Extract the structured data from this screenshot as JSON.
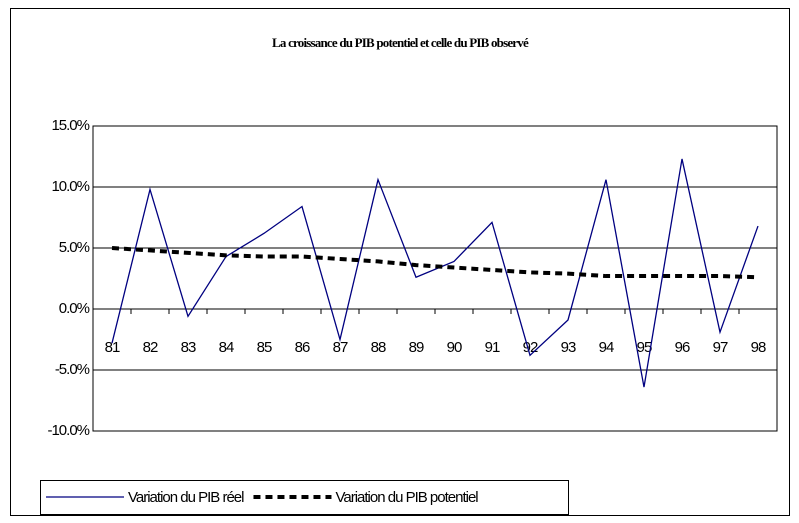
{
  "chart_data": {
    "type": "line",
    "title": "La croissance du PIB potentiel et celle du PIB observé",
    "categories": [
      "81",
      "82",
      "83",
      "84",
      "85",
      "86",
      "87",
      "88",
      "89",
      "90",
      "91",
      "92",
      "93",
      "94",
      "95",
      "96",
      "97",
      "98"
    ],
    "series": [
      {
        "name": "Variation du PIB réel",
        "color": "#000080",
        "dash": "solid",
        "values": [
          -2.8,
          9.8,
          -0.6,
          4.3,
          6.2,
          8.4,
          -2.5,
          10.6,
          2.6,
          3.9,
          7.1,
          -3.8,
          -0.9,
          10.6,
          -6.4,
          12.3,
          -1.9,
          6.8
        ]
      },
      {
        "name": "Variation du PIB potentiel",
        "color": "#000000",
        "dash": "dotted",
        "values": [
          5.0,
          4.8,
          4.6,
          4.4,
          4.3,
          4.3,
          4.1,
          3.9,
          3.6,
          3.4,
          3.2,
          3.0,
          2.9,
          2.7,
          2.7,
          2.7,
          2.7,
          2.6
        ]
      }
    ],
    "ylim": [
      -10,
      15
    ],
    "yticks": [
      {
        "value": -10,
        "label": "-10.0%"
      },
      {
        "value": -5,
        "label": "-5.0%"
      },
      {
        "value": 0,
        "label": "0.0%"
      },
      {
        "value": 5,
        "label": "5.0%"
      },
      {
        "value": 10,
        "label": "10.0%"
      },
      {
        "value": 15,
        "label": "15.0%"
      }
    ],
    "grid": true,
    "legend": "bottom"
  }
}
